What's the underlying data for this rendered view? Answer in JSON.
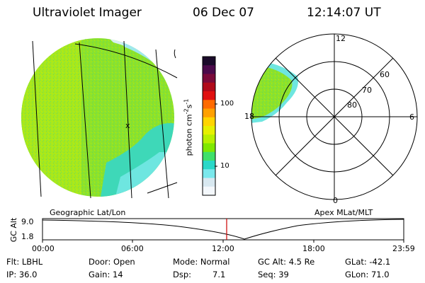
{
  "header": {
    "instrument": "Ultraviolet Imager",
    "date": "06 Dec 07",
    "time": "12:14:07 UT"
  },
  "colorbar": {
    "unit_main": "photon cm",
    "unit_exp1": "-2",
    "unit_mid": "s",
    "unit_exp2": "-1",
    "ticks": [
      "100",
      "10"
    ],
    "colors": [
      "#1a0a2a",
      "#4b0a4b",
      "#7a0a3a",
      "#b00a1a",
      "#e01010",
      "#ff6a00",
      "#ffa000",
      "#ffd400",
      "#e6f000",
      "#b8f000",
      "#7fe800",
      "#3fe06a",
      "#2ad8c8",
      "#7ae8ec",
      "#d8e8f0",
      "#f4f8fc"
    ]
  },
  "left_panel": {
    "caption": "Geographic Lat/Lon",
    "marker": "x"
  },
  "right_panel": {
    "caption": "Apex MLat/MLT",
    "lat_labels": [
      "60",
      "70",
      "80"
    ],
    "mlt_labels": {
      "top": "12",
      "right": "6",
      "bottom": "0",
      "left": "18"
    }
  },
  "altitude_plot": {
    "ylabel": "GC Alt",
    "ytick_top": "9.0",
    "ytick_bottom": "1.8",
    "xticks": [
      "00:00",
      "06:00",
      "12:00",
      "18:00",
      "23:59"
    ],
    "current_time_color": "#cc0000"
  },
  "status": {
    "flt": "Flt: LBHL",
    "door": "Door: Open",
    "mode": "Mode: Normal",
    "gc_alt": "GC Alt: 4.5 Re",
    "glat": "GLat: -42.1",
    "ip": "IP: 36.0",
    "gain": "Gain: 14",
    "dsp_label": "Dsp:",
    "dsp_value": "7.1",
    "seq": "Seq: 39",
    "glon": "GLon: 71.0"
  }
}
